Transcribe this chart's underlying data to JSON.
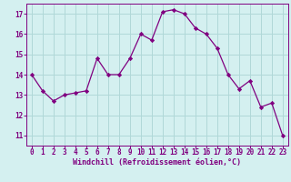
{
  "x": [
    0,
    1,
    2,
    3,
    4,
    5,
    6,
    7,
    8,
    9,
    10,
    11,
    12,
    13,
    14,
    15,
    16,
    17,
    18,
    19,
    20,
    21,
    22,
    23
  ],
  "y": [
    14.0,
    13.2,
    12.7,
    13.0,
    13.1,
    13.2,
    14.8,
    14.0,
    14.0,
    14.8,
    16.0,
    15.7,
    17.1,
    17.2,
    17.0,
    16.3,
    16.0,
    15.3,
    14.0,
    13.3,
    13.7,
    12.4,
    12.6,
    11.0
  ],
  "line_color": "#800080",
  "marker": "D",
  "marker_size": 2.2,
  "bg_color": "#d4f0f0",
  "grid_color": "#b0d8d8",
  "xlabel": "Windchill (Refroidissement éolien,°C)",
  "xlabel_color": "#800080",
  "xlim": [
    -0.5,
    23.5
  ],
  "ylim": [
    10.5,
    17.5
  ],
  "yticks": [
    11,
    12,
    13,
    14,
    15,
    16,
    17
  ],
  "xticks": [
    0,
    1,
    2,
    3,
    4,
    5,
    6,
    7,
    8,
    9,
    10,
    11,
    12,
    13,
    14,
    15,
    16,
    17,
    18,
    19,
    20,
    21,
    22,
    23
  ],
  "tick_color": "#800080",
  "tick_fontsize": 5.5,
  "xlabel_fontsize": 6.0,
  "spine_color": "#800080",
  "line_width": 0.9
}
